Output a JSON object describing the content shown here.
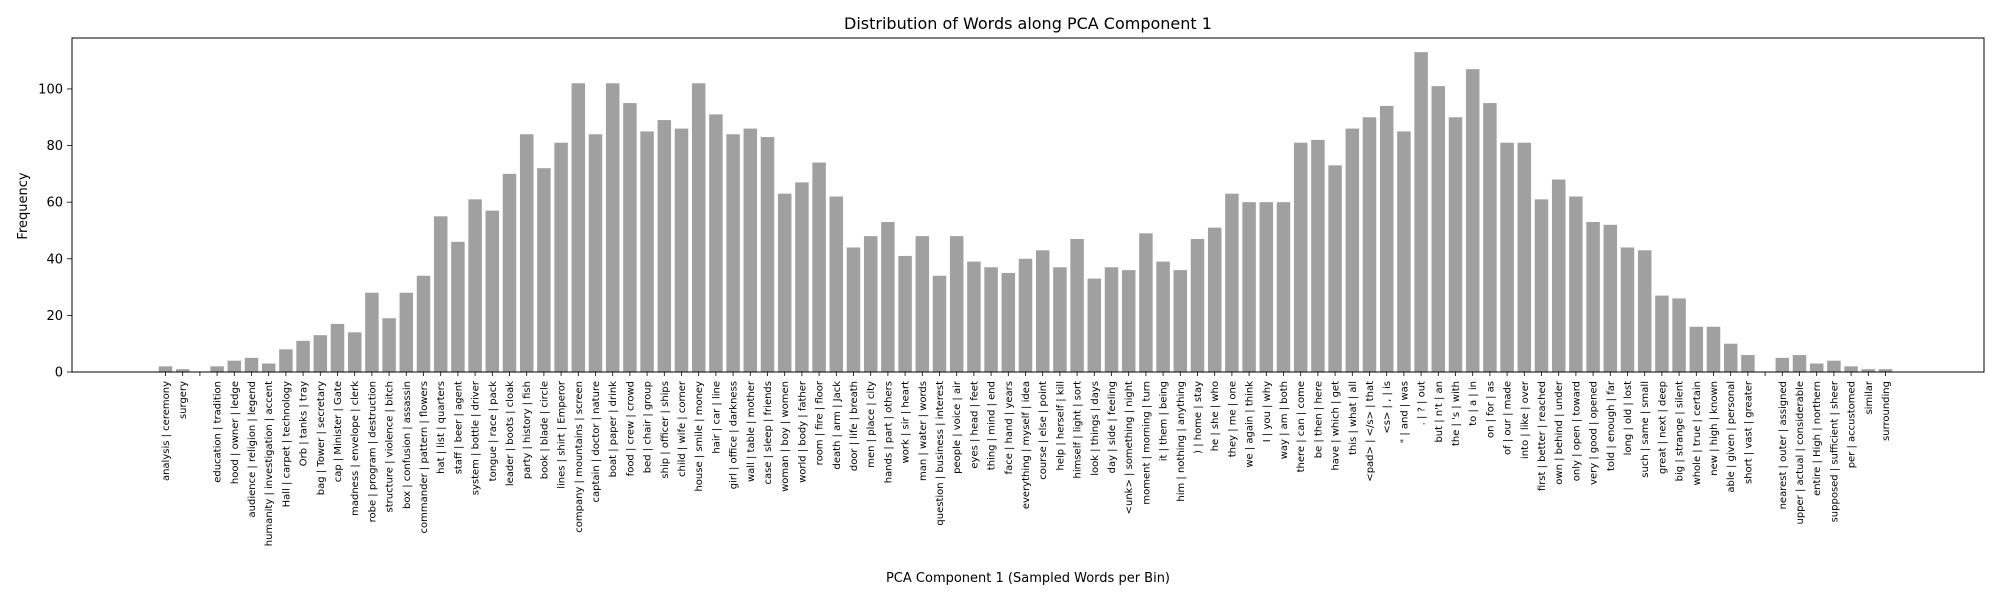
{
  "chart_data": {
    "type": "bar",
    "title": "Distribution of Words along PCA Component 1",
    "xlabel": "PCA Component 1 (Sampled Words per Bin)",
    "ylabel": "Frequency",
    "ylim": [
      0,
      118
    ],
    "yticks": [
      0,
      20,
      40,
      60,
      80,
      100
    ],
    "bar_color": "#a0a0a0",
    "grid": false,
    "categories": [
      "analysis | ceremony",
      "surgery",
      "",
      "education | tradition",
      "hood | owner | ledge",
      "audience | religion | legend",
      "humanity | investigation | accent",
      "Hall | carpet | technology",
      "Orb | tanks | tray",
      "bag | Tower | secretary",
      "cap | Minister | Gate",
      "madness | envelope | clerk",
      "robe | program | destruction",
      "structure | violence | bitch",
      "box | confusion | assassin",
      "commander | pattern | flowers",
      "hat | list | quarters",
      "staff | beer | agent",
      "system | bottle | driver",
      "tongue | race | pack",
      "leader | boots | cloak",
      "party | history | fish",
      "book | blade | circle",
      "lines | shirt | Emperor",
      "company | mountains | screen",
      "captain | doctor | nature",
      "boat | paper | drink",
      "food | crew | crowd",
      "bed | chair | group",
      "ship | officer | ships",
      "child | wife | corner",
      "house | smile | money",
      "hair | car | line",
      "girl | office | darkness",
      "wall | table | mother",
      "case | sleep | friends",
      "woman | boy | women",
      "world | body | father",
      "room | fire | floor",
      "death | arm | Jack",
      "door | life | breath",
      "men | place | city",
      "hands | part | others",
      "work | sir | heart",
      "man | water | words",
      "question | business | interest",
      "people | voice | air",
      "eyes | head | feet",
      "thing | mind | end",
      "face | hand | years",
      "everything | myself | idea",
      "course | else | point",
      "help | herself | kill",
      "himself | light | sort",
      "look | things | days",
      "day | side | feeling",
      "<unk> | something | night",
      "moment | morning | turn",
      "it | them | being",
      "him | nothing | anything",
      ") | home | stay",
      "he | she | who",
      "they | me | one",
      "we | again | think",
      "I | you | why",
      "way | am | both",
      "there | can | come",
      "be | then | here",
      "have | which | get",
      "this | what | all",
      "<pad> | </s> | that",
      "<s> | , | is",
      "\" | and | was",
      ". | ? | out",
      "but | n't | an",
      "the | 's | with",
      "to | a | in",
      "on | for | as",
      "of | our | made",
      "into | like | over",
      "first | better | reached",
      "own | behind | under",
      "only | open | toward",
      "very | good | opened",
      "told | enough | far",
      "long | old | lost",
      "such | same | small",
      "great | next | deep",
      "big | strange | silent",
      "whole | true | certain",
      "new | high | known",
      "able | given | personal",
      "short | vast | greater",
      "",
      "nearest | outer | assigned",
      "upper | actual | considerable",
      "entire | High | northern",
      "supposed | sufficient | sheer",
      "per | accustomed",
      "similar",
      "surrounding"
    ],
    "values": [
      2,
      1,
      0,
      2,
      4,
      5,
      3,
      8,
      11,
      13,
      17,
      14,
      28,
      19,
      28,
      34,
      55,
      46,
      61,
      57,
      70,
      84,
      72,
      81,
      102,
      84,
      102,
      95,
      85,
      89,
      86,
      102,
      91,
      84,
      86,
      83,
      63,
      67,
      74,
      62,
      44,
      48,
      53,
      41,
      48,
      34,
      48,
      39,
      37,
      35,
      40,
      43,
      37,
      47,
      33,
      37,
      36,
      49,
      39,
      36,
      47,
      51,
      63,
      60,
      60,
      60,
      81,
      82,
      73,
      86,
      90,
      94,
      85,
      113,
      101,
      90,
      107,
      95,
      81,
      81,
      61,
      68,
      62,
      53,
      52,
      44,
      43,
      27,
      26,
      16,
      16,
      10,
      6,
      0,
      5,
      6,
      3,
      4,
      2,
      1,
      1
    ]
  }
}
